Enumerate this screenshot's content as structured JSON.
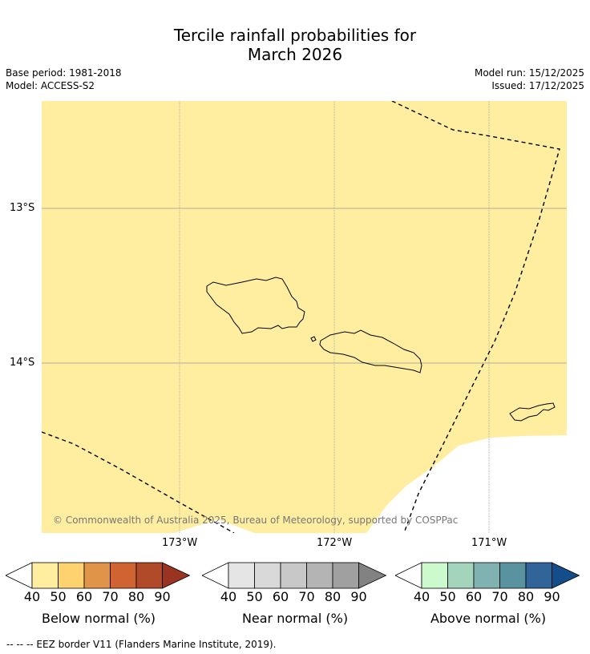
{
  "title": {
    "line1": "Tercile rainfall probabilities for",
    "line2": "March 2026"
  },
  "meta": {
    "base_period": "Base period: 1981-2018",
    "model": "Model: ACCESS-S2",
    "model_run": "Model run: 15/12/2025",
    "issued": "Issued: 17/12/2025"
  },
  "map": {
    "fill_color": "#ffeda0",
    "lat_labels": [
      "13°S",
      "14°S"
    ],
    "lon_labels": [
      "173°W",
      "172°W",
      "171°W"
    ],
    "credit": "© Commonwealth of Australia 2025, Bureau of Meteorology, supported by COSPPac"
  },
  "colorbars": [
    {
      "label": "Below normal (%)",
      "ticks": [
        "40",
        "50",
        "60",
        "70",
        "80",
        "90"
      ],
      "colors": [
        "#ffeda0",
        "#fed26e",
        "#e0944a",
        "#cf6432",
        "#b04a28",
        "#993322"
      ]
    },
    {
      "label": "Near normal (%)",
      "ticks": [
        "40",
        "50",
        "60",
        "70",
        "80",
        "90"
      ],
      "colors": [
        "#e5e5e5",
        "#d9d9d9",
        "#c8c8c8",
        "#b4b4b4",
        "#a0a0a0",
        "#828282"
      ]
    },
    {
      "label": "Above normal (%)",
      "ticks": [
        "40",
        "50",
        "60",
        "70",
        "80",
        "90"
      ],
      "colors": [
        "#ccfacc",
        "#a3d5bd",
        "#7fb2b0",
        "#5a93a0",
        "#31659a",
        "#134e8a"
      ]
    }
  ],
  "footer": "--  --  -- EEZ border V11 (Flanders Marine Institute, 2019)."
}
